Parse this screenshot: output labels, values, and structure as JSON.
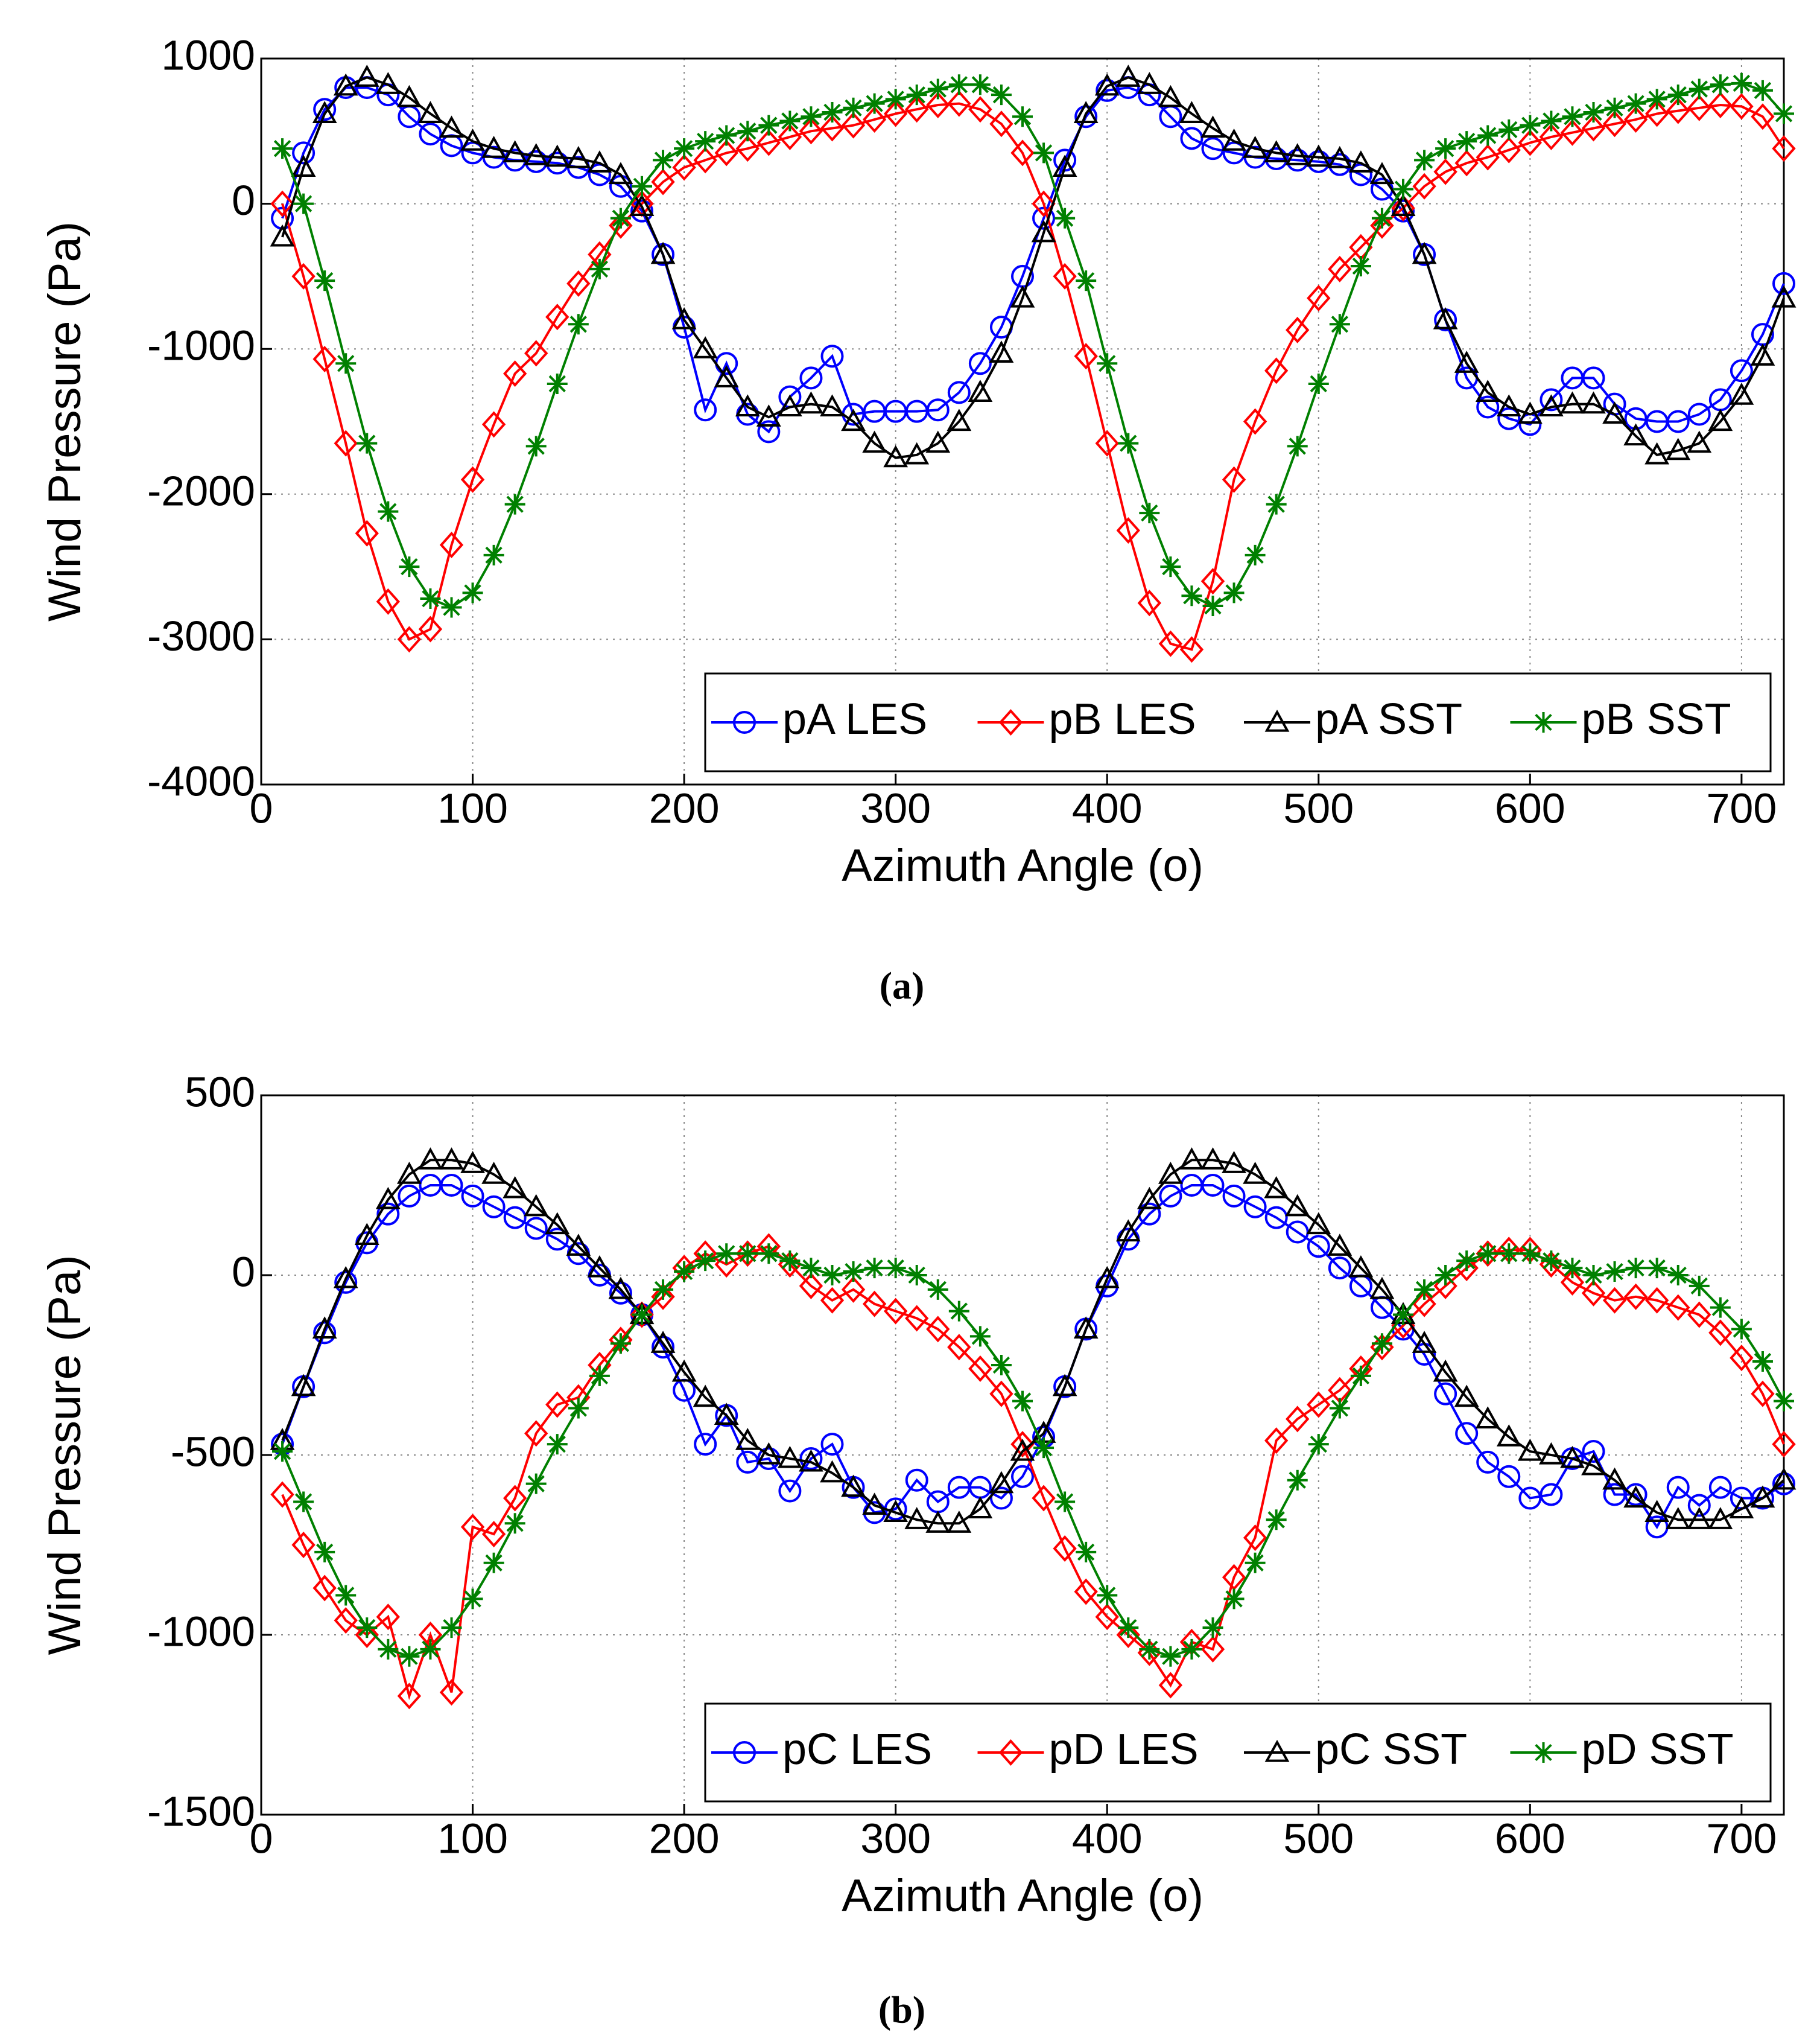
{
  "chart_data": [
    {
      "type": "line",
      "caption": "(a)",
      "xlabel": "Azimuth Angle (o)",
      "ylabel": "Wind Pressure (Pa)",
      "xlim": [
        0,
        720
      ],
      "xticks": [
        0,
        100,
        200,
        300,
        400,
        500,
        600,
        700
      ],
      "ylim": [
        -4000,
        1000
      ],
      "yticks": [
        -4000,
        -3000,
        -2000,
        -1000,
        0,
        1000
      ],
      "grid": true,
      "legend": "lower right",
      "x": [
        10,
        20,
        30,
        40,
        50,
        60,
        70,
        80,
        90,
        100,
        110,
        120,
        130,
        140,
        150,
        160,
        170,
        180,
        190,
        200,
        210,
        220,
        230,
        240,
        250,
        260,
        270,
        280,
        290,
        300,
        310,
        320,
        330,
        340,
        350,
        360,
        370,
        380,
        390,
        400,
        410,
        420,
        430,
        440,
        450,
        460,
        470,
        480,
        490,
        500,
        510,
        520,
        530,
        540,
        550,
        560,
        570,
        580,
        590,
        600,
        610,
        620,
        630,
        640,
        650,
        660,
        670,
        680,
        690,
        700,
        710,
        720
      ],
      "series": [
        {
          "name": "pA LES",
          "color": "#0000ff",
          "marker": "circle",
          "values": [
            -100,
            350,
            650,
            800,
            800,
            750,
            600,
            480,
            400,
            350,
            320,
            300,
            290,
            280,
            250,
            200,
            120,
            -50,
            -350,
            -850,
            -1420,
            -1100,
            -1450,
            -1570,
            -1330,
            -1200,
            -1050,
            -1450,
            -1430,
            -1430,
            -1430,
            -1420,
            -1300,
            -1100,
            -850,
            -500,
            -100,
            300,
            600,
            780,
            800,
            750,
            600,
            450,
            380,
            350,
            320,
            310,
            300,
            290,
            270,
            200,
            100,
            -50,
            -350,
            -800,
            -1200,
            -1400,
            -1480,
            -1520,
            -1350,
            -1200,
            -1200,
            -1380,
            -1480,
            -1500,
            -1500,
            -1450,
            -1350,
            -1150,
            -900,
            -550
          ]
        },
        {
          "name": "pB LES",
          "color": "#ff0000",
          "marker": "diamond",
          "values": [
            0,
            -500,
            -1070,
            -1650,
            -2270,
            -2740,
            -3000,
            -2930,
            -2350,
            -1900,
            -1520,
            -1170,
            -1030,
            -780,
            -550,
            -350,
            -150,
            0,
            150,
            250,
            300,
            350,
            380,
            420,
            460,
            500,
            520,
            540,
            580,
            620,
            650,
            680,
            690,
            650,
            550,
            350,
            0,
            -500,
            -1050,
            -1650,
            -2250,
            -2750,
            -3030,
            -3070,
            -2600,
            -1900,
            -1500,
            -1150,
            -870,
            -650,
            -450,
            -300,
            -150,
            -30,
            120,
            220,
            280,
            320,
            370,
            420,
            460,
            490,
            520,
            550,
            580,
            620,
            640,
            660,
            680,
            670,
            600,
            380
          ]
        },
        {
          "name": "pA SST",
          "color": "#000000",
          "marker": "triangle",
          "values": [
            -230,
            250,
            620,
            810,
            870,
            820,
            730,
            620,
            520,
            430,
            380,
            350,
            330,
            320,
            310,
            280,
            200,
            -20,
            -350,
            -800,
            -1000,
            -1200,
            -1400,
            -1470,
            -1400,
            -1380,
            -1400,
            -1500,
            -1650,
            -1750,
            -1730,
            -1650,
            -1500,
            -1300,
            -1030,
            -650,
            -200,
            250,
            620,
            810,
            870,
            820,
            730,
            620,
            520,
            430,
            380,
            350,
            330,
            320,
            310,
            280,
            200,
            -20,
            -350,
            -800,
            -1100,
            -1300,
            -1400,
            -1450,
            -1400,
            -1380,
            -1380,
            -1450,
            -1600,
            -1730,
            -1700,
            -1650,
            -1500,
            -1320,
            -1050,
            -650
          ]
        },
        {
          "name": "pB SST",
          "color": "#008000",
          "marker": "star",
          "values": [
            380,
            0,
            -530,
            -1100,
            -1650,
            -2120,
            -2500,
            -2720,
            -2780,
            -2680,
            -2420,
            -2070,
            -1670,
            -1240,
            -830,
            -450,
            -100,
            120,
            300,
            380,
            430,
            470,
            500,
            540,
            570,
            600,
            630,
            660,
            690,
            720,
            750,
            790,
            820,
            820,
            750,
            600,
            350,
            -100,
            -530,
            -1100,
            -1650,
            -2130,
            -2500,
            -2700,
            -2770,
            -2680,
            -2420,
            -2070,
            -1670,
            -1240,
            -830,
            -430,
            -100,
            100,
            300,
            380,
            430,
            470,
            510,
            540,
            570,
            600,
            630,
            660,
            690,
            720,
            750,
            790,
            820,
            830,
            780,
            620
          ]
        }
      ]
    },
    {
      "type": "line",
      "caption": "(b)",
      "xlabel": "Azimuth Angle (o)",
      "ylabel": "Wind Pressure (Pa)",
      "xlim": [
        0,
        720
      ],
      "xticks": [
        0,
        100,
        200,
        300,
        400,
        500,
        600,
        700
      ],
      "ylim": [
        -1500,
        500
      ],
      "yticks": [
        -1500,
        -1000,
        -500,
        0,
        500
      ],
      "grid": true,
      "legend": "lower right",
      "x": [
        10,
        20,
        30,
        40,
        50,
        60,
        70,
        80,
        90,
        100,
        110,
        120,
        130,
        140,
        150,
        160,
        170,
        180,
        190,
        200,
        210,
        220,
        230,
        240,
        250,
        260,
        270,
        280,
        290,
        300,
        310,
        320,
        330,
        340,
        350,
        360,
        370,
        380,
        390,
        400,
        410,
        420,
        430,
        440,
        450,
        460,
        470,
        480,
        490,
        500,
        510,
        520,
        530,
        540,
        550,
        560,
        570,
        580,
        590,
        600,
        610,
        620,
        630,
        640,
        650,
        660,
        670,
        680,
        690,
        700,
        710,
        720
      ],
      "series": [
        {
          "name": "pC LES",
          "color": "#0000ff",
          "marker": "circle",
          "values": [
            -470,
            -310,
            -160,
            -20,
            90,
            170,
            220,
            250,
            250,
            220,
            190,
            160,
            130,
            100,
            60,
            0,
            -50,
            -110,
            -200,
            -320,
            -470,
            -390,
            -520,
            -510,
            -600,
            -510,
            -470,
            -590,
            -660,
            -650,
            -570,
            -630,
            -590,
            -590,
            -620,
            -560,
            -450,
            -310,
            -150,
            -30,
            100,
            170,
            220,
            250,
            250,
            220,
            190,
            160,
            120,
            80,
            20,
            -30,
            -90,
            -150,
            -220,
            -330,
            -440,
            -520,
            -560,
            -620,
            -610,
            -510,
            -490,
            -610,
            -610,
            -700,
            -590,
            -640,
            -590,
            -620,
            -620,
            -580
          ]
        },
        {
          "name": "pD LES",
          "color": "#ff0000",
          "marker": "diamond",
          "values": [
            -610,
            -750,
            -870,
            -960,
            -1000,
            -950,
            -1170,
            -1000,
            -1160,
            -700,
            -720,
            -620,
            -440,
            -360,
            -340,
            -250,
            -180,
            -110,
            -60,
            20,
            60,
            30,
            60,
            80,
            30,
            -30,
            -70,
            -40,
            -80,
            -100,
            -120,
            -150,
            -200,
            -260,
            -330,
            -470,
            -620,
            -760,
            -880,
            -950,
            -1000,
            -1050,
            -1140,
            -1020,
            -1040,
            -840,
            -730,
            -460,
            -400,
            -360,
            -320,
            -260,
            -200,
            -140,
            -80,
            -30,
            20,
            60,
            70,
            70,
            30,
            -20,
            -50,
            -70,
            -60,
            -70,
            -90,
            -110,
            -160,
            -230,
            -330,
            -470
          ]
        },
        {
          "name": "pC SST",
          "color": "#000000",
          "marker": "triangle",
          "values": [
            -460,
            -310,
            -150,
            -10,
            110,
            210,
            280,
            320,
            320,
            310,
            280,
            240,
            190,
            140,
            80,
            20,
            -40,
            -110,
            -190,
            -270,
            -340,
            -390,
            -460,
            -500,
            -510,
            -520,
            -550,
            -590,
            -640,
            -660,
            -680,
            -690,
            -690,
            -650,
            -580,
            -490,
            -440,
            -310,
            -150,
            -10,
            120,
            210,
            280,
            320,
            320,
            310,
            280,
            240,
            190,
            140,
            80,
            20,
            -40,
            -110,
            -190,
            -270,
            -340,
            -400,
            -450,
            -490,
            -500,
            -510,
            -530,
            -570,
            -620,
            -660,
            -680,
            -680,
            -680,
            -650,
            -620,
            -570
          ]
        },
        {
          "name": "pD SST",
          "color": "#008000",
          "marker": "star",
          "values": [
            -490,
            -630,
            -770,
            -890,
            -980,
            -1040,
            -1060,
            -1040,
            -980,
            -900,
            -800,
            -690,
            -580,
            -470,
            -370,
            -280,
            -190,
            -110,
            -40,
            10,
            40,
            60,
            60,
            60,
            40,
            20,
            0,
            10,
            20,
            20,
            0,
            -40,
            -100,
            -170,
            -250,
            -350,
            -480,
            -630,
            -770,
            -890,
            -980,
            -1040,
            -1060,
            -1040,
            -980,
            -900,
            -800,
            -680,
            -570,
            -470,
            -370,
            -280,
            -190,
            -110,
            -40,
            0,
            40,
            60,
            60,
            60,
            40,
            20,
            0,
            10,
            20,
            20,
            0,
            -30,
            -90,
            -150,
            -240,
            -350
          ]
        }
      ]
    }
  ]
}
